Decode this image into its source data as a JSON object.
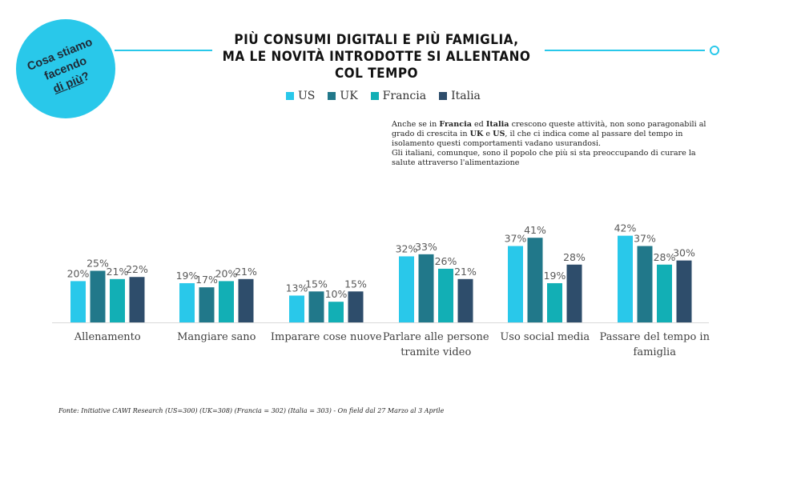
{
  "badge": {
    "line1": "Cosa stiamo",
    "line2": "facendo",
    "line3": "di più",
    "line3_suffix": "?"
  },
  "title": {
    "line1": "PIÙ CONSUMI DIGITALI E PIÙ FAMIGLIA,",
    "line2": "MA LE NOVITÀ INTRODOTTE SI ALLENTANO COL TEMPO"
  },
  "note": {
    "p1_a": "Anche se in ",
    "p1_b": "Francia",
    "p1_c": " ed ",
    "p1_d": "Italia",
    "p1_e": "  crescono queste attività, non sono paragonabili al grado di crescita in ",
    "p1_f": "UK",
    "p1_g": " e ",
    "p1_h": "US",
    "p1_i": ", il che ci indica come al passare del tempo in isolamento questi comportamenti vadano usurandosi.",
    "p2": "Gli italiani, comunque, sono il popolo che più si sta preoccupando di curare la salute attraverso l'alimentazione"
  },
  "source": "Fonte: Initiative CAWI Research (US=300) (UK=308) (Francia = 302) (Italia = 303) -  On field dal 27 Marzo al 3 Aprile",
  "colors": {
    "accent": "#29c8ea",
    "us": "#29c8ea",
    "uk": "#21788a",
    "francia": "#12afb5",
    "italia": "#2e4d6b"
  },
  "chart_data": {
    "type": "bar",
    "categories": [
      "Allenamento",
      "Mangiare sano",
      "Imparare cose nuove",
      "Parlare alle persone tramite video",
      "Uso social media",
      "Passare del tempo in famiglia"
    ],
    "category_lines": [
      [
        "Allenamento"
      ],
      [
        "Mangiare sano"
      ],
      [
        "Imparare cose nuove"
      ],
      [
        "Parlare alle persone",
        "tramite video"
      ],
      [
        "Uso social media"
      ],
      [
        "Passare del tempo in",
        "famiglia"
      ]
    ],
    "series": [
      {
        "name": "US",
        "color": "#29c8ea",
        "values": [
          20,
          19,
          13,
          32,
          37,
          42
        ]
      },
      {
        "name": "UK",
        "color": "#21788a",
        "values": [
          25,
          17,
          15,
          33,
          41,
          37
        ]
      },
      {
        "name": "Francia",
        "color": "#12afb5",
        "values": [
          21,
          20,
          10,
          26,
          19,
          28
        ]
      },
      {
        "name": "Italia",
        "color": "#2e4d6b",
        "values": [
          22,
          21,
          15,
          21,
          28,
          30
        ]
      }
    ],
    "value_suffix": "%",
    "ylim": [
      0,
      45
    ],
    "legend": "top-center",
    "grid": false
  }
}
